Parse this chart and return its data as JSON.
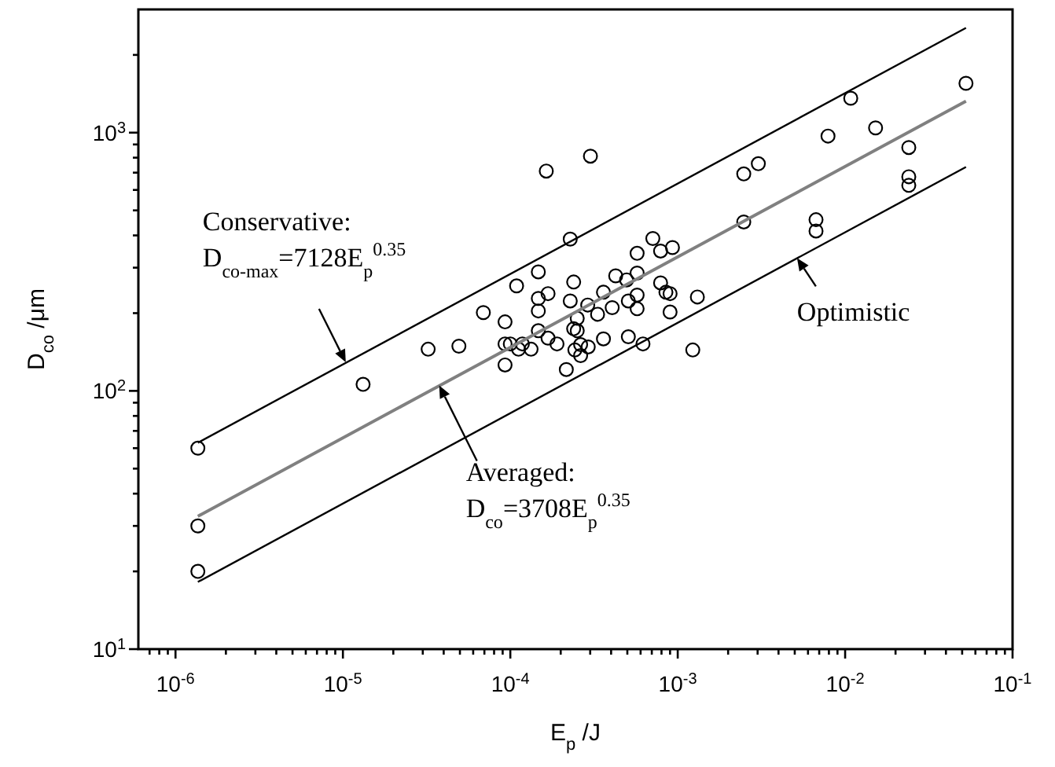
{
  "chart_data": {
    "type": "scatter",
    "xlabel": "E$_{p}$ /J",
    "ylabel": "D$_{co}$ /μm",
    "log": "xy",
    "grid": false,
    "xlim": [
      6e-07,
      0.1
    ],
    "ylim": [
      10,
      3000
    ],
    "xticks": [
      {
        "value": 1e-06,
        "label": "10$^{-6}$"
      },
      {
        "value": 2e-06,
        "label": null
      },
      {
        "value": 3e-06,
        "label": null
      },
      {
        "value": 4e-06,
        "label": null
      },
      {
        "value": 5e-06,
        "label": null
      },
      {
        "value": 6e-06,
        "label": null
      },
      {
        "value": 7e-06,
        "label": null
      },
      {
        "value": 8e-06,
        "label": null
      },
      {
        "value": 9e-06,
        "label": null
      },
      {
        "value": 1e-05,
        "label": "10$^{-5}$"
      },
      {
        "value": 2e-05,
        "label": null
      },
      {
        "value": 3e-05,
        "label": null
      },
      {
        "value": 4e-05,
        "label": null
      },
      {
        "value": 5e-05,
        "label": null
      },
      {
        "value": 6e-05,
        "label": null
      },
      {
        "value": 7e-05,
        "label": null
      },
      {
        "value": 8e-05,
        "label": null
      },
      {
        "value": 9e-05,
        "label": null
      },
      {
        "value": 0.0001,
        "label": "10$^{-4}$"
      },
      {
        "value": 0.0002,
        "label": null
      },
      {
        "value": 0.0003,
        "label": null
      },
      {
        "value": 0.0004,
        "label": null
      },
      {
        "value": 0.0005,
        "label": null
      },
      {
        "value": 0.0006,
        "label": null
      },
      {
        "value": 0.0007,
        "label": null
      },
      {
        "value": 0.0008,
        "label": null
      },
      {
        "value": 0.0009,
        "label": null
      },
      {
        "value": 0.001,
        "label": "10$^{-3}$"
      },
      {
        "value": 0.002,
        "label": null
      },
      {
        "value": 0.003,
        "label": null
      },
      {
        "value": 0.004,
        "label": null
      },
      {
        "value": 0.005,
        "label": null
      },
      {
        "value": 0.006,
        "label": null
      },
      {
        "value": 0.007,
        "label": null
      },
      {
        "value": 0.008,
        "label": null
      },
      {
        "value": 0.009,
        "label": null
      },
      {
        "value": 0.01,
        "label": "10$^{-2}$"
      },
      {
        "value": 0.02,
        "label": null
      },
      {
        "value": 0.03,
        "label": null
      },
      {
        "value": 0.04,
        "label": null
      },
      {
        "value": 0.05,
        "label": null
      },
      {
        "value": 0.06,
        "label": null
      },
      {
        "value": 0.07,
        "label": null
      },
      {
        "value": 0.08,
        "label": null
      },
      {
        "value": 0.09,
        "label": null
      },
      {
        "value": 0.1,
        "label": "10$^{-1}$"
      },
      {
        "value": 7e-07,
        "label": null
      },
      {
        "value": 8e-07,
        "label": null
      },
      {
        "value": 9e-07,
        "label": null
      }
    ],
    "yticks": [
      {
        "value": 10,
        "label": "10$^{1}$"
      },
      {
        "value": 20,
        "label": null
      },
      {
        "value": 30,
        "label": null
      },
      {
        "value": 40,
        "label": null
      },
      {
        "value": 50,
        "label": null
      },
      {
        "value": 60,
        "label": null
      },
      {
        "value": 70,
        "label": null
      },
      {
        "value": 80,
        "label": null
      },
      {
        "value": 90,
        "label": null
      },
      {
        "value": 100,
        "label": "10$^{2}$"
      },
      {
        "value": 200,
        "label": null
      },
      {
        "value": 300,
        "label": null
      },
      {
        "value": 400,
        "label": null
      },
      {
        "value": 500,
        "label": null
      },
      {
        "value": 600,
        "label": null
      },
      {
        "value": 700,
        "label": null
      },
      {
        "value": 800,
        "label": null
      },
      {
        "value": 900,
        "label": null
      },
      {
        "value": 1000,
        "label": "10$^{3}$"
      },
      {
        "value": 2000,
        "label": null
      }
    ],
    "series": [
      {
        "marker": "circle",
        "color": "#000000",
        "x": [
          1.36e-06,
          1.36e-06,
          1.36e-06,
          1.32e-05,
          3.23e-05,
          4.93e-05,
          6.9e-05,
          9.3e-05,
          9.3e-05,
          9.3e-05,
          0.0001,
          0.000109,
          0.000112,
          0.000118,
          0.000133,
          0.000147,
          0.000147,
          0.000147,
          0.000147,
          0.000164,
          0.000168,
          0.000168,
          0.00019,
          0.000216,
          0.000228,
          0.000228,
          0.000239,
          0.000239,
          0.000243,
          0.000251,
          0.000251,
          0.000263,
          0.000263,
          0.000292,
          0.00029,
          0.000301,
          0.000332,
          0.00036,
          0.00036,
          0.000406,
          0.000426,
          0.000495,
          0.000507,
          0.000507,
          0.000572,
          0.000572,
          0.000572,
          0.000572,
          0.00062,
          0.00071,
          0.00079,
          0.00079,
          0.00085,
          0.0009,
          0.0009,
          0.00093,
          0.00131,
          0.00123,
          0.00248,
          0.00248,
          0.00303,
          0.0067,
          0.0067,
          0.0079,
          0.0108,
          0.0152,
          0.024,
          0.024,
          0.024,
          0.0527
        ],
        "values": [
          60,
          30,
          20,
          106,
          145,
          149,
          201,
          185,
          152,
          126,
          152,
          255,
          145,
          152,
          145,
          289,
          228,
          204,
          171,
          710,
          238,
          160,
          152,
          121,
          387,
          223,
          264,
          174,
          144,
          191,
          171,
          137,
          151,
          148,
          215,
          811,
          198,
          159,
          241,
          210,
          279,
          269,
          223,
          162,
          341,
          286,
          235,
          208,
          152,
          389,
          348,
          262,
          241,
          238,
          202,
          359,
          231,
          144,
          692,
          451,
          758,
          460,
          416,
          970,
          1359,
          1043,
          876,
          675,
          625,
          1553
        ]
      },
      {
        "type": "line",
        "marker": "none",
        "color": "#000000",
        "x": [
          1.36e-06,
          0.0527
        ],
        "values": [
          63,
          2545
        ]
      },
      {
        "type": "line",
        "marker": "none",
        "color": "#808080",
        "x": [
          1.36e-06,
          0.0527
        ],
        "values": [
          32.7,
          1324
        ]
      },
      {
        "type": "line",
        "marker": "none",
        "color": "#000000",
        "x": [
          1.36e-06,
          0.0527
        ],
        "values": [
          18.2,
          736
        ]
      }
    ],
    "annotations": [
      {
        "text": "Conservative:\nD$_{co-max}$=7128E$_{p}$$^{0.35}$",
        "x": 1.04e-05,
        "y": 129
      },
      {
        "text": "Averaged:\nD$_{co}$=3708E$_{p}$$^{0.35}$",
        "x": 3.76e-05,
        "y": 105
      },
      {
        "text": "Optimistic",
        "x": 0.00516,
        "y": 327
      }
    ]
  }
}
